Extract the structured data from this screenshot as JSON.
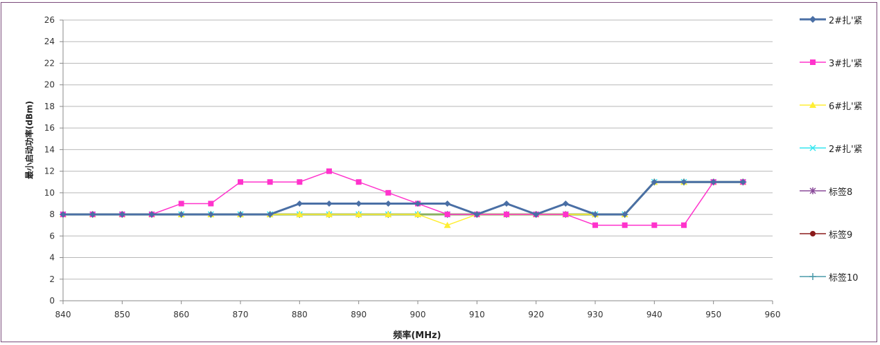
{
  "chart_data": {
    "type": "line",
    "xlabel": "频率(MHz)",
    "ylabel": "最小启动功率(dBm)",
    "xlim": [
      840,
      960
    ],
    "ylim": [
      0,
      26
    ],
    "x_ticks": [
      840,
      850,
      860,
      870,
      880,
      890,
      900,
      910,
      920,
      930,
      940,
      950,
      960
    ],
    "y_ticks": [
      0,
      2,
      4,
      6,
      8,
      10,
      12,
      14,
      16,
      18,
      20,
      22,
      24,
      26
    ],
    "grid": "horizontal",
    "legend_position": "right",
    "series": [
      {
        "name": "2#扎'紧",
        "color": "#4a6fa5",
        "marker": "diamond",
        "x": [
          840,
          845,
          850,
          855,
          860,
          865,
          870,
          875,
          880,
          885,
          890,
          895,
          900,
          905,
          910,
          915,
          920,
          925,
          930,
          935,
          940,
          945,
          950,
          955
        ],
        "y": [
          8,
          8,
          8,
          8,
          8,
          8,
          8,
          8,
          9,
          9,
          9,
          9,
          9,
          9,
          8,
          9,
          8,
          9,
          8,
          8,
          11,
          11,
          11,
          11
        ]
      },
      {
        "name": "3#扎'紧",
        "color": "#ff33cc",
        "marker": "square",
        "x": [
          840,
          845,
          850,
          855,
          860,
          865,
          870,
          875,
          880,
          885,
          890,
          895,
          900,
          905,
          910,
          915,
          920,
          925,
          930,
          935,
          940,
          945,
          950,
          955
        ],
        "y": [
          8,
          8,
          8,
          8,
          9,
          9,
          11,
          11,
          11,
          12,
          11,
          10,
          9,
          8,
          8,
          8,
          8,
          8,
          7,
          7,
          7,
          7,
          11,
          11
        ]
      },
      {
        "name": "6#扎'紧",
        "color": "#ffee33",
        "marker": "triangle",
        "x": [
          840,
          845,
          850,
          855,
          860,
          865,
          870,
          875,
          880,
          885,
          890,
          895,
          900,
          905,
          910,
          915,
          920,
          925,
          930,
          935,
          940,
          945,
          950,
          955
        ],
        "y": [
          8,
          8,
          8,
          8,
          8,
          8,
          8,
          8,
          8,
          8,
          8,
          8,
          8,
          7,
          8,
          8,
          8,
          8,
          8,
          8,
          11,
          11,
          11,
          11
        ]
      },
      {
        "name": "2#扎'紧",
        "color": "#33e6f0",
        "marker": "x",
        "x": [
          840,
          845,
          850,
          855,
          860,
          865,
          870,
          875,
          880,
          885,
          890,
          895,
          900,
          905,
          910,
          915,
          920,
          925,
          930,
          935,
          940,
          945,
          950,
          955
        ],
        "y": [
          8,
          8,
          8,
          8,
          8,
          8,
          8,
          8,
          8,
          8,
          8,
          8,
          8,
          8,
          8,
          8,
          8,
          8,
          8,
          8,
          11,
          11,
          11,
          11
        ]
      },
      {
        "name": "标签8",
        "color": "#8a4a9a",
        "marker": "star",
        "x": [],
        "y": []
      },
      {
        "name": "标签9",
        "color": "#8b1a1a",
        "marker": "circle",
        "x": [],
        "y": []
      },
      {
        "name": "标签10",
        "color": "#4a9aaa",
        "marker": "plus",
        "x": [
          840,
          845,
          850,
          855,
          860,
          865,
          870,
          875,
          880,
          885,
          890,
          895,
          900,
          905,
          910,
          915,
          920,
          925,
          930,
          935,
          940,
          945,
          950,
          955
        ],
        "y": [
          8,
          8,
          8,
          8,
          8,
          8,
          8,
          8,
          8,
          8,
          8,
          8,
          8,
          8,
          8,
          8,
          8,
          8,
          8,
          8,
          11,
          11,
          11,
          11
        ]
      },
      {
        "name": "",
        "color": "#8ab060",
        "marker": "none",
        "x": [
          840,
          845,
          850,
          855,
          860,
          865,
          870,
          875,
          880,
          885,
          890,
          895,
          900,
          905,
          910,
          915,
          920,
          925,
          930,
          935,
          940,
          945,
          950,
          955
        ],
        "y": [
          8,
          8,
          8,
          8,
          8,
          8,
          8,
          8,
          8,
          8,
          8,
          8,
          8,
          8,
          8,
          8,
          8,
          8,
          8,
          8,
          11,
          11,
          11,
          11
        ]
      }
    ]
  }
}
